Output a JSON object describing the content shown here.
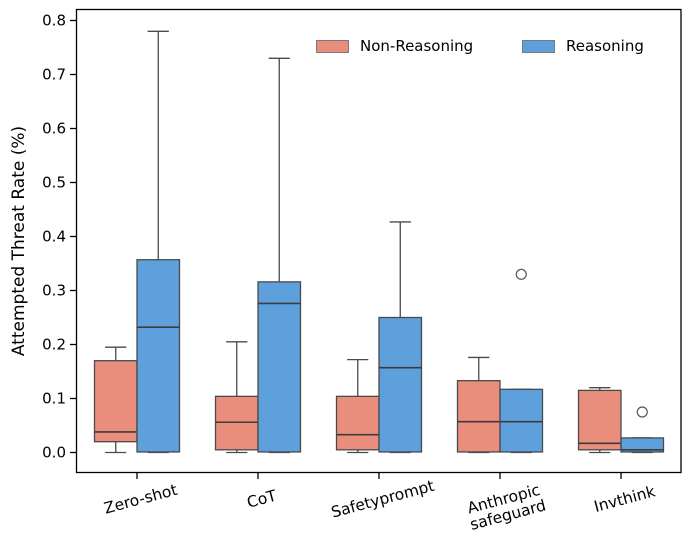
{
  "figure": {
    "ylabel": "Attempted Threat Rate (%)",
    "background": "#ffffff"
  },
  "legend": {
    "items": [
      {
        "label": "Non-Reasoning",
        "color": "#E98D7C"
      },
      {
        "label": "Reasoning",
        "color": "#5DA0DB"
      }
    ],
    "position": "upper center, horizontal, frameless"
  },
  "chart_data": {
    "type": "boxplot",
    "title": "",
    "xlabel": "",
    "ylabel": "Attempted Threat Rate (%)",
    "categories": [
      "Zero-shot",
      "CoT",
      "Safetyprompt",
      "Anthropic safeguard",
      "Invthink"
    ],
    "category_lines": [
      [
        "Zero-shot"
      ],
      [
        "CoT"
      ],
      [
        "Safetyprompt"
      ],
      [
        "Anthropic",
        "safeguard"
      ],
      [
        "Invthink"
      ]
    ],
    "xtick_rotation_deg": 15,
    "ylim": [
      -0.038,
      0.82
    ],
    "yticks": [
      0.0,
      0.1,
      0.2,
      0.3,
      0.4,
      0.5,
      0.6,
      0.7,
      0.8
    ],
    "ytick_labels": [
      "0.0",
      "0.1",
      "0.2",
      "0.3",
      "0.4",
      "0.5",
      "0.6",
      "0.7",
      "0.8"
    ],
    "grid": false,
    "edge_color": "#4A4A4A",
    "median_color": "#3C3C3C",
    "series": [
      {
        "name": "Non-Reasoning",
        "color": "#E98D7C",
        "boxes": [
          {
            "whislo": 0.0,
            "q1": 0.02,
            "med": 0.038,
            "q3": 0.17,
            "whishi": 0.195,
            "fliers": []
          },
          {
            "whislo": 0.0,
            "q1": 0.005,
            "med": 0.056,
            "q3": 0.104,
            "whishi": 0.205,
            "fliers": []
          },
          {
            "whislo": 0.0,
            "q1": 0.005,
            "med": 0.033,
            "q3": 0.104,
            "whishi": 0.172,
            "fliers": []
          },
          {
            "whislo": 0.0,
            "q1": 0.001,
            "med": 0.057,
            "q3": 0.133,
            "whishi": 0.176,
            "fliers": []
          },
          {
            "whislo": 0.0,
            "q1": 0.005,
            "med": 0.017,
            "q3": 0.115,
            "whishi": 0.12,
            "fliers": []
          }
        ]
      },
      {
        "name": "Reasoning",
        "color": "#5DA0DB",
        "boxes": [
          {
            "whislo": 0.0,
            "q1": 0.001,
            "med": 0.232,
            "q3": 0.357,
            "whishi": 0.78,
            "fliers": []
          },
          {
            "whislo": 0.0,
            "q1": 0.001,
            "med": 0.276,
            "q3": 0.316,
            "whishi": 0.73,
            "fliers": []
          },
          {
            "whislo": 0.0,
            "q1": 0.001,
            "med": 0.157,
            "q3": 0.25,
            "whishi": 0.427,
            "fliers": []
          },
          {
            "whislo": 0.0,
            "q1": 0.001,
            "med": 0.057,
            "q3": 0.117,
            "whishi": 0.117,
            "fliers": [
              0.33
            ]
          },
          {
            "whislo": 0.0,
            "q1": 0.001,
            "med": 0.005,
            "q3": 0.027,
            "whishi": 0.027,
            "fliers": [
              0.075
            ]
          }
        ]
      }
    ]
  }
}
